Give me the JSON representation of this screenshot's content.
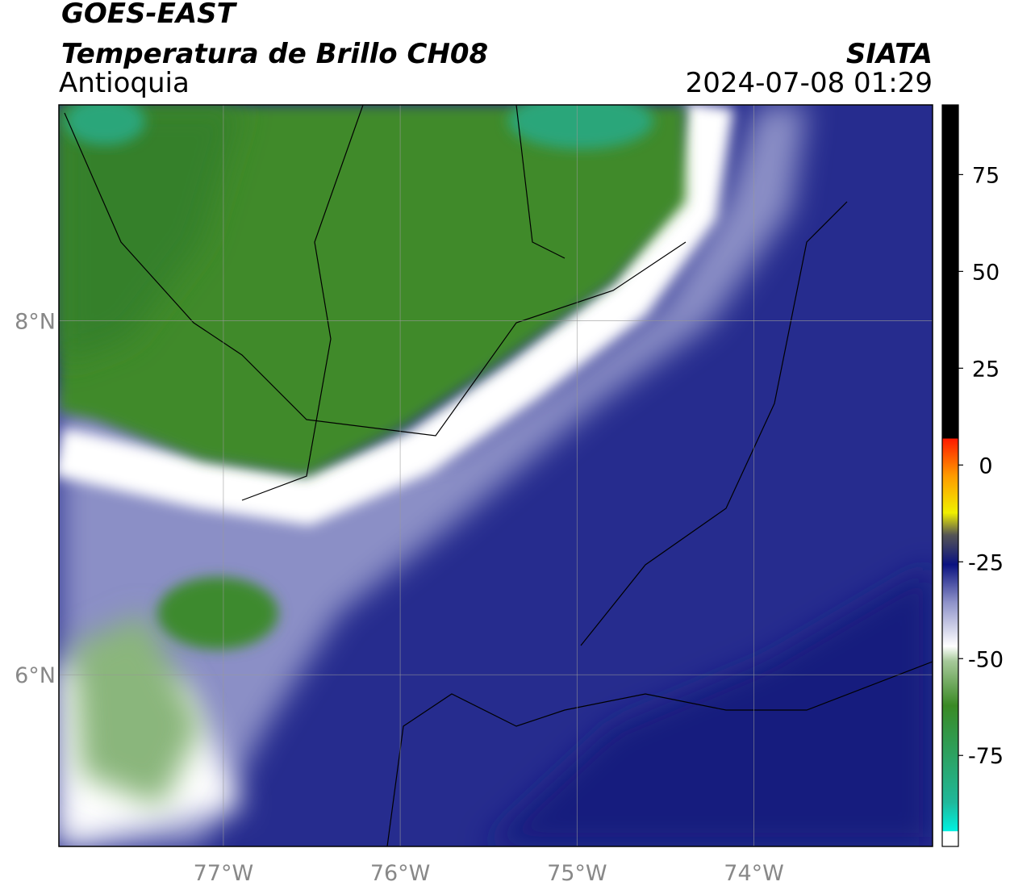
{
  "header": {
    "title": "GOES-EAST",
    "subtitle": "Temperatura de Brillo CH08",
    "region": "Antioquia",
    "source": "SIATA",
    "datetime": "2024-07-08 01:29"
  },
  "map": {
    "lon_range": [
      -77.93,
      -72.99
    ],
    "lat_range": [
      5.03,
      9.22
    ],
    "lon_ticks": [
      {
        "value": -77,
        "label": "77°W"
      },
      {
        "value": -76,
        "label": "76°W"
      },
      {
        "value": -75,
        "label": "75°W"
      },
      {
        "value": -74,
        "label": "74°W"
      }
    ],
    "lat_ticks": [
      {
        "value": 8,
        "label": "8°N"
      },
      {
        "value": 6,
        "label": "6°N"
      }
    ]
  },
  "colorbar": {
    "range": [
      -98.5,
      93
    ],
    "ticks": [
      75,
      50,
      25,
      0,
      -25,
      -50,
      -75
    ]
  }
}
